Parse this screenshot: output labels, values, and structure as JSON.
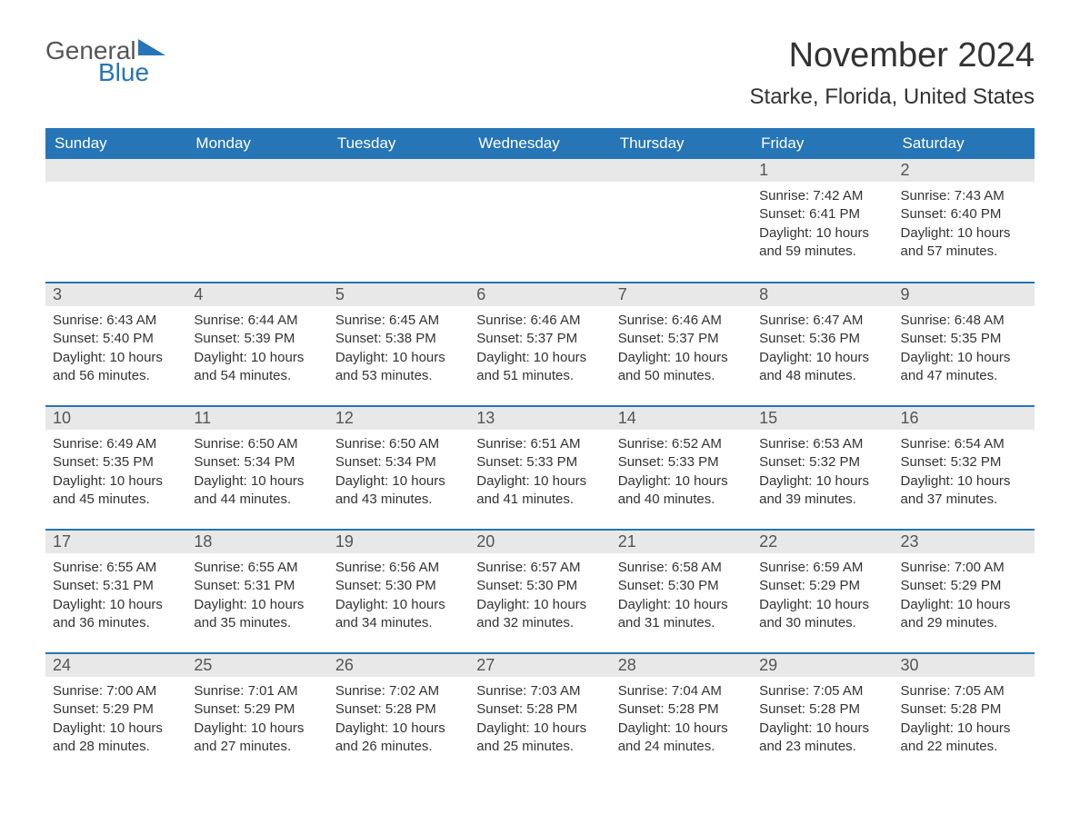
{
  "logo": {
    "text_general": "General",
    "text_blue": "Blue",
    "triangle_color": "#2575b7"
  },
  "title": "November 2024",
  "location": "Starke, Florida, United States",
  "colors": {
    "header_bg": "#2575b7",
    "header_text": "#ffffff",
    "day_number_bg": "#e8e8e8",
    "border": "#2575b7",
    "text": "#333333"
  },
  "day_headers": [
    "Sunday",
    "Monday",
    "Tuesday",
    "Wednesday",
    "Thursday",
    "Friday",
    "Saturday"
  ],
  "weeks": [
    [
      null,
      null,
      null,
      null,
      null,
      {
        "day": "1",
        "sunrise": "Sunrise: 7:42 AM",
        "sunset": "Sunset: 6:41 PM",
        "daylight": "Daylight: 10 hours and 59 minutes."
      },
      {
        "day": "2",
        "sunrise": "Sunrise: 7:43 AM",
        "sunset": "Sunset: 6:40 PM",
        "daylight": "Daylight: 10 hours and 57 minutes."
      }
    ],
    [
      {
        "day": "3",
        "sunrise": "Sunrise: 6:43 AM",
        "sunset": "Sunset: 5:40 PM",
        "daylight": "Daylight: 10 hours and 56 minutes."
      },
      {
        "day": "4",
        "sunrise": "Sunrise: 6:44 AM",
        "sunset": "Sunset: 5:39 PM",
        "daylight": "Daylight: 10 hours and 54 minutes."
      },
      {
        "day": "5",
        "sunrise": "Sunrise: 6:45 AM",
        "sunset": "Sunset: 5:38 PM",
        "daylight": "Daylight: 10 hours and 53 minutes."
      },
      {
        "day": "6",
        "sunrise": "Sunrise: 6:46 AM",
        "sunset": "Sunset: 5:37 PM",
        "daylight": "Daylight: 10 hours and 51 minutes."
      },
      {
        "day": "7",
        "sunrise": "Sunrise: 6:46 AM",
        "sunset": "Sunset: 5:37 PM",
        "daylight": "Daylight: 10 hours and 50 minutes."
      },
      {
        "day": "8",
        "sunrise": "Sunrise: 6:47 AM",
        "sunset": "Sunset: 5:36 PM",
        "daylight": "Daylight: 10 hours and 48 minutes."
      },
      {
        "day": "9",
        "sunrise": "Sunrise: 6:48 AM",
        "sunset": "Sunset: 5:35 PM",
        "daylight": "Daylight: 10 hours and 47 minutes."
      }
    ],
    [
      {
        "day": "10",
        "sunrise": "Sunrise: 6:49 AM",
        "sunset": "Sunset: 5:35 PM",
        "daylight": "Daylight: 10 hours and 45 minutes."
      },
      {
        "day": "11",
        "sunrise": "Sunrise: 6:50 AM",
        "sunset": "Sunset: 5:34 PM",
        "daylight": "Daylight: 10 hours and 44 minutes."
      },
      {
        "day": "12",
        "sunrise": "Sunrise: 6:50 AM",
        "sunset": "Sunset: 5:34 PM",
        "daylight": "Daylight: 10 hours and 43 minutes."
      },
      {
        "day": "13",
        "sunrise": "Sunrise: 6:51 AM",
        "sunset": "Sunset: 5:33 PM",
        "daylight": "Daylight: 10 hours and 41 minutes."
      },
      {
        "day": "14",
        "sunrise": "Sunrise: 6:52 AM",
        "sunset": "Sunset: 5:33 PM",
        "daylight": "Daylight: 10 hours and 40 minutes."
      },
      {
        "day": "15",
        "sunrise": "Sunrise: 6:53 AM",
        "sunset": "Sunset: 5:32 PM",
        "daylight": "Daylight: 10 hours and 39 minutes."
      },
      {
        "day": "16",
        "sunrise": "Sunrise: 6:54 AM",
        "sunset": "Sunset: 5:32 PM",
        "daylight": "Daylight: 10 hours and 37 minutes."
      }
    ],
    [
      {
        "day": "17",
        "sunrise": "Sunrise: 6:55 AM",
        "sunset": "Sunset: 5:31 PM",
        "daylight": "Daylight: 10 hours and 36 minutes."
      },
      {
        "day": "18",
        "sunrise": "Sunrise: 6:55 AM",
        "sunset": "Sunset: 5:31 PM",
        "daylight": "Daylight: 10 hours and 35 minutes."
      },
      {
        "day": "19",
        "sunrise": "Sunrise: 6:56 AM",
        "sunset": "Sunset: 5:30 PM",
        "daylight": "Daylight: 10 hours and 34 minutes."
      },
      {
        "day": "20",
        "sunrise": "Sunrise: 6:57 AM",
        "sunset": "Sunset: 5:30 PM",
        "daylight": "Daylight: 10 hours and 32 minutes."
      },
      {
        "day": "21",
        "sunrise": "Sunrise: 6:58 AM",
        "sunset": "Sunset: 5:30 PM",
        "daylight": "Daylight: 10 hours and 31 minutes."
      },
      {
        "day": "22",
        "sunrise": "Sunrise: 6:59 AM",
        "sunset": "Sunset: 5:29 PM",
        "daylight": "Daylight: 10 hours and 30 minutes."
      },
      {
        "day": "23",
        "sunrise": "Sunrise: 7:00 AM",
        "sunset": "Sunset: 5:29 PM",
        "daylight": "Daylight: 10 hours and 29 minutes."
      }
    ],
    [
      {
        "day": "24",
        "sunrise": "Sunrise: 7:00 AM",
        "sunset": "Sunset: 5:29 PM",
        "daylight": "Daylight: 10 hours and 28 minutes."
      },
      {
        "day": "25",
        "sunrise": "Sunrise: 7:01 AM",
        "sunset": "Sunset: 5:29 PM",
        "daylight": "Daylight: 10 hours and 27 minutes."
      },
      {
        "day": "26",
        "sunrise": "Sunrise: 7:02 AM",
        "sunset": "Sunset: 5:28 PM",
        "daylight": "Daylight: 10 hours and 26 minutes."
      },
      {
        "day": "27",
        "sunrise": "Sunrise: 7:03 AM",
        "sunset": "Sunset: 5:28 PM",
        "daylight": "Daylight: 10 hours and 25 minutes."
      },
      {
        "day": "28",
        "sunrise": "Sunrise: 7:04 AM",
        "sunset": "Sunset: 5:28 PM",
        "daylight": "Daylight: 10 hours and 24 minutes."
      },
      {
        "day": "29",
        "sunrise": "Sunrise: 7:05 AM",
        "sunset": "Sunset: 5:28 PM",
        "daylight": "Daylight: 10 hours and 23 minutes."
      },
      {
        "day": "30",
        "sunrise": "Sunrise: 7:05 AM",
        "sunset": "Sunset: 5:28 PM",
        "daylight": "Daylight: 10 hours and 22 minutes."
      }
    ]
  ]
}
